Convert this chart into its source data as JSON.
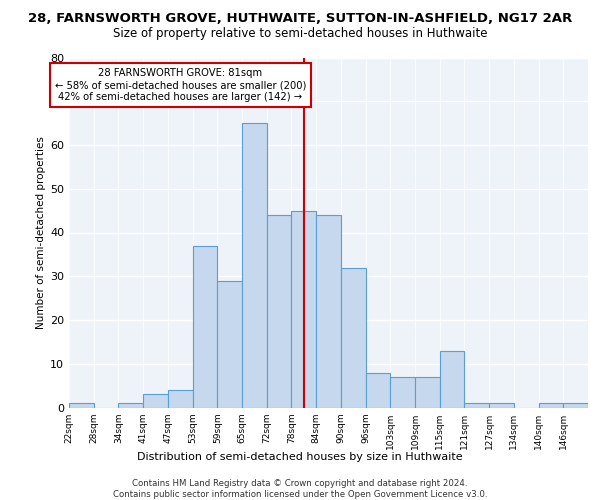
{
  "title": "28, FARNSWORTH GROVE, HUTHWAITE, SUTTON-IN-ASHFIELD, NG17 2AR",
  "subtitle": "Size of property relative to semi-detached houses in Huthwaite",
  "xlabel": "Distribution of semi-detached houses by size in Huthwaite",
  "ylabel": "Number of semi-detached properties",
  "categories": [
    "22sqm",
    "28sqm",
    "34sqm",
    "41sqm",
    "47sqm",
    "53sqm",
    "59sqm",
    "65sqm",
    "72sqm",
    "78sqm",
    "84sqm",
    "90sqm",
    "96sqm",
    "103sqm",
    "109sqm",
    "115sqm",
    "121sqm",
    "127sqm",
    "134sqm",
    "140sqm",
    "146sqm"
  ],
  "values": [
    1,
    0,
    1,
    3,
    4,
    37,
    29,
    65,
    44,
    45,
    44,
    32,
    8,
    7,
    7,
    13,
    1,
    1,
    0,
    1,
    1
  ],
  "bar_color": "#c5d8ed",
  "bar_edge_color": "#5a9fd4",
  "pct_smaller": 58,
  "count_smaller": 200,
  "pct_larger": 42,
  "count_larger": 142,
  "vline_color": "#cc0000",
  "ann_box_edge_color": "#cc0000",
  "ylim": [
    0,
    80
  ],
  "yticks": [
    0,
    10,
    20,
    30,
    40,
    50,
    60,
    70,
    80
  ],
  "bg_color": "#eef2f9",
  "footer1": "Contains HM Land Registry data © Crown copyright and database right 2024.",
  "footer2": "Contains public sector information licensed under the Open Government Licence v3.0."
}
